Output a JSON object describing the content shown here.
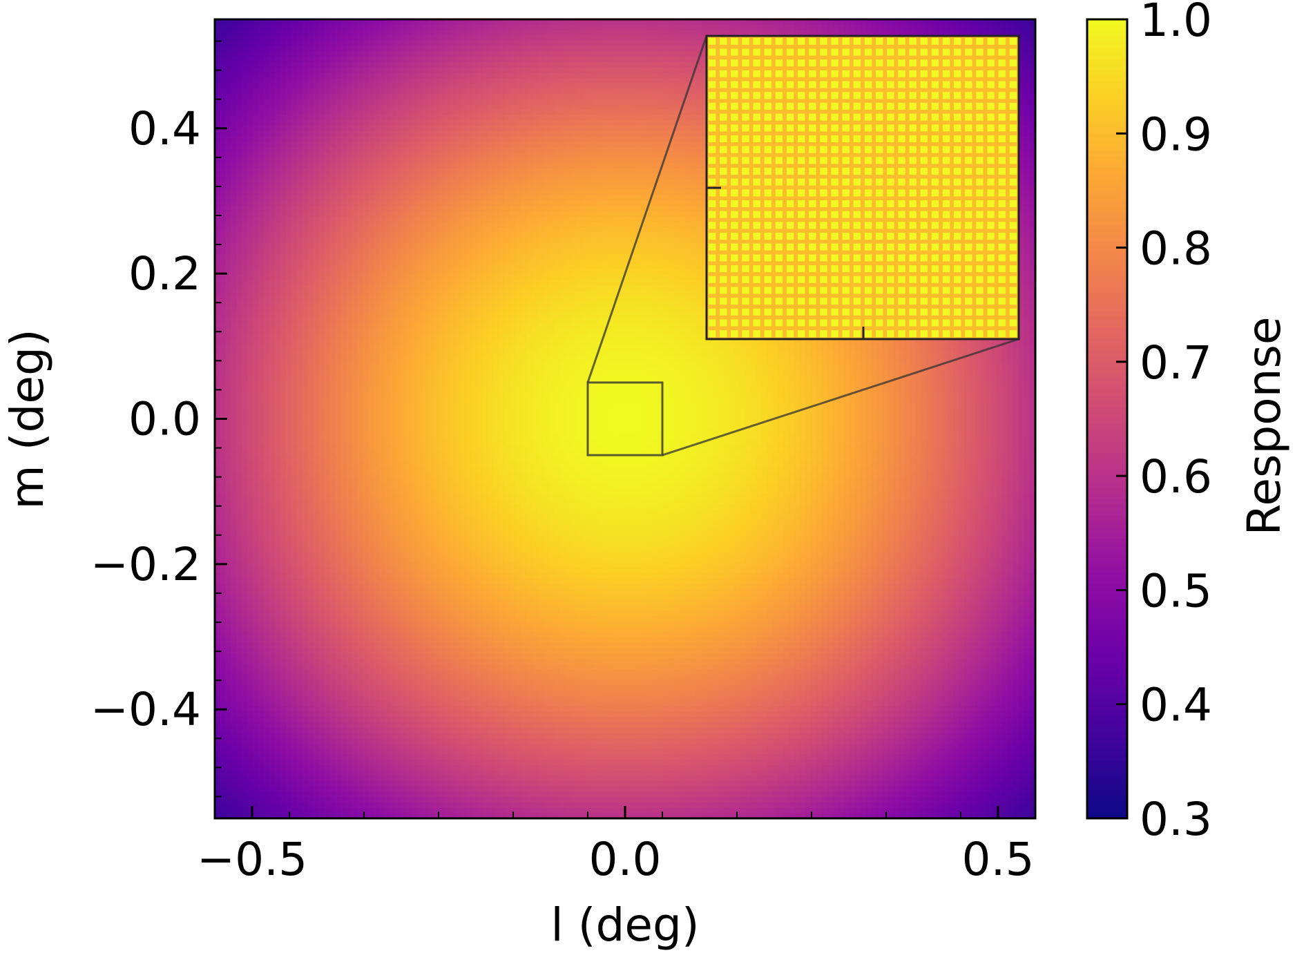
{
  "chart_data": {
    "type": "heatmap",
    "title": "",
    "xlabel": "l (deg)",
    "ylabel": "m (deg)",
    "xlim": [
      -0.55,
      0.55
    ],
    "ylim": [
      -0.55,
      0.55
    ],
    "xticks": [
      -0.5,
      0.0,
      0.5
    ],
    "xtick_labels": [
      "−0.5",
      "0.0",
      "0.5"
    ],
    "yticks": [
      -0.4,
      -0.2,
      0.0,
      0.2,
      0.4
    ],
    "ytick_labels": [
      "−0.4",
      "−0.2",
      "0.0",
      "0.2",
      "0.4"
    ],
    "x_minor_step": 0.1,
    "y_minor_step": 0.04,
    "colormap": "plasma",
    "colorbar": {
      "label": "Response",
      "range": [
        0.3,
        1.0
      ],
      "ticks": [
        0.3,
        0.4,
        0.5,
        0.6,
        0.7,
        0.8,
        0.9,
        1.0
      ],
      "tick_labels": [
        "0.3",
        "0.4",
        "0.5",
        "0.6",
        "0.7",
        "0.8",
        "0.9",
        "1.0"
      ]
    },
    "field": {
      "peak_value": 1.0,
      "peak_at": [
        0.0,
        0.0
      ],
      "value_at_edge_center": 0.6,
      "value_at_corner": 0.33,
      "extent": [
        -0.55,
        0.55,
        -0.55,
        0.55
      ]
    },
    "zoom_inset": {
      "region_l": [
        -0.05,
        0.05
      ],
      "region_m": [
        -0.05,
        0.05
      ],
      "grid_cells": 28,
      "cell_value_range": [
        0.9,
        1.0
      ]
    },
    "grid": false
  }
}
